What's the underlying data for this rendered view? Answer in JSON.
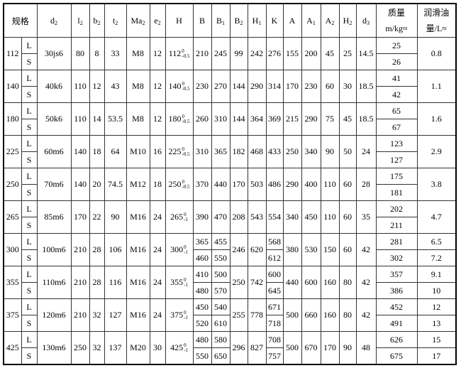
{
  "headers": [
    {
      "base": "规格"
    },
    {
      "base": "d",
      "sub": "2"
    },
    {
      "base": "l",
      "sub": "2"
    },
    {
      "base": "b",
      "sub": "2"
    },
    {
      "base": "t",
      "sub": "2"
    },
    {
      "base": "Ma",
      "sub": "2"
    },
    {
      "base": "e",
      "sub": "2"
    },
    {
      "base": "H"
    },
    {
      "base": "B"
    },
    {
      "base": "B",
      "sub": "1"
    },
    {
      "base": "B",
      "sub": "2"
    },
    {
      "base": "H",
      "sub": "1"
    },
    {
      "base": "K"
    },
    {
      "base": "A"
    },
    {
      "base": "A",
      "sub": "1"
    },
    {
      "base": "A",
      "sub": "2"
    },
    {
      "base": "H",
      "sub": "2"
    },
    {
      "base": "d",
      "sub": "3"
    },
    {
      "base": "质量 m/kg≈"
    },
    {
      "base": "润滑油量/L≈"
    }
  ],
  "variants": [
    "L",
    "S"
  ],
  "rows": [
    {
      "size": "112",
      "d2": "30js6",
      "l2": "80",
      "b2": "8",
      "t2": "33",
      "Ma2": "M8",
      "e2": "12",
      "H": {
        "base": "112",
        "upper": "0",
        "lower": "-0.5"
      },
      "B": "210",
      "B1": "245",
      "B2": "99",
      "H1": "242",
      "K": "276",
      "A": "155",
      "A1": "200",
      "A2": "45",
      "H2": "25",
      "d3": "14.5",
      "mass": [
        "25",
        "26"
      ],
      "oil": "0.8"
    },
    {
      "size": "140",
      "d2": "40k6",
      "l2": "110",
      "b2": "12",
      "t2": "43",
      "Ma2": "M8",
      "e2": "12",
      "H": {
        "base": "140",
        "upper": "0",
        "lower": "-0.5"
      },
      "B": "230",
      "B1": "270",
      "B2": "144",
      "H1": "290",
      "K": "314",
      "A": "170",
      "A1": "230",
      "A2": "60",
      "H2": "30",
      "d3": "18.5",
      "mass": [
        "41",
        "42"
      ],
      "oil": "1.1"
    },
    {
      "size": "180",
      "d2": "50k6",
      "l2": "110",
      "b2": "14",
      "t2": "53.5",
      "Ma2": "M8",
      "e2": "12",
      "H": {
        "base": "180",
        "upper": "0",
        "lower": "-0.5"
      },
      "B": "260",
      "B1": "310",
      "B2": "144",
      "H1": "364",
      "K": "369",
      "A": "215",
      "A1": "290",
      "A2": "75",
      "H2": "45",
      "d3": "18.5",
      "mass": [
        "65",
        "67"
      ],
      "oil": "1.6"
    },
    {
      "size": "225",
      "d2": "60m6",
      "l2": "140",
      "b2": "18",
      "t2": "64",
      "Ma2": "M10",
      "e2": "16",
      "H": {
        "base": "225",
        "upper": "0",
        "lower": "-0.5"
      },
      "B": "310",
      "B1": "365",
      "B2": "182",
      "H1": "468",
      "K": "433",
      "A": "250",
      "A1": "340",
      "A2": "90",
      "H2": "50",
      "d3": "24",
      "mass": [
        "123",
        "127"
      ],
      "oil": "2.9"
    },
    {
      "size": "250",
      "d2": "70m6",
      "l2": "140",
      "b2": "20",
      "t2": "74.5",
      "Ma2": "M12",
      "e2": "18",
      "H": {
        "base": "250",
        "upper": "0",
        "lower": "-0.5"
      },
      "B": "370",
      "B1": "440",
      "B2": "170",
      "H1": "503",
      "K": "486",
      "A": "290",
      "A1": "400",
      "A2": "110",
      "H2": "60",
      "d3": "28",
      "mass": [
        "175",
        "181"
      ],
      "oil": "3.8"
    },
    {
      "size": "265",
      "d2": "85m6",
      "l2": "170",
      "b2": "22",
      "t2": "90",
      "Ma2": "M16",
      "e2": "24",
      "H": {
        "base": "265",
        "upper": "0",
        "lower": "-1"
      },
      "B": "390",
      "B1": "470",
      "B2": "208",
      "H1": "543",
      "K": "554",
      "A": "340",
      "A1": "450",
      "A2": "110",
      "H2": "60",
      "d3": "35",
      "mass": [
        "202",
        "211"
      ],
      "oil": "4.7"
    },
    {
      "size": "300",
      "d2": "100m6",
      "l2": "210",
      "b2": "28",
      "t2": "106",
      "Ma2": "M16",
      "e2": "24",
      "H": {
        "base": "300",
        "upper": "0",
        "lower": "-1"
      },
      "B": [
        "365",
        "460"
      ],
      "B1": [
        "455",
        "550"
      ],
      "B2": "246",
      "H1": "620",
      "K": [
        "568",
        "612"
      ],
      "A": "380",
      "A1": "530",
      "A2": "150",
      "H2": "60",
      "d3": "42",
      "mass": [
        "281",
        "302"
      ],
      "oil": [
        "6.5",
        "7.2"
      ]
    },
    {
      "size": "355",
      "d2": "110m6",
      "l2": "210",
      "b2": "28",
      "t2": "116",
      "Ma2": "M16",
      "e2": "24",
      "H": {
        "base": "355",
        "upper": "0",
        "lower": "-1"
      },
      "B": [
        "410",
        "480"
      ],
      "B1": [
        "500",
        "570"
      ],
      "B2": "250",
      "H1": "742",
      "K": [
        "600",
        "645"
      ],
      "A": "440",
      "A1": "600",
      "A2": "160",
      "H2": "80",
      "d3": "42",
      "mass": [
        "357",
        "386"
      ],
      "oil": [
        "9.1",
        "10"
      ]
    },
    {
      "size": "375",
      "d2": "120m6",
      "l2": "210",
      "b2": "32",
      "t2": "127",
      "Ma2": "M16",
      "e2": "24",
      "H": {
        "base": "375",
        "upper": "0",
        "lower": "-1"
      },
      "B": [
        "450",
        "520"
      ],
      "B1": [
        "540",
        "610"
      ],
      "B2": "255",
      "H1": "778",
      "K": [
        "671",
        "718"
      ],
      "A": "500",
      "A1": "660",
      "A2": "160",
      "H2": "80",
      "d3": "42",
      "mass": [
        "452",
        "491"
      ],
      "oil": [
        "12",
        "13"
      ]
    },
    {
      "size": "425",
      "d2": "130m6",
      "l2": "250",
      "b2": "32",
      "t2": "137",
      "Ma2": "M20",
      "e2": "30",
      "H": {
        "base": "425",
        "upper": "0",
        "lower": "-1"
      },
      "B": [
        "480",
        "550"
      ],
      "B1": [
        "580",
        "650"
      ],
      "B2": "296",
      "H1": "827",
      "K": [
        "708",
        "757"
      ],
      "A": "500",
      "A1": "670",
      "A2": "170",
      "H2": "90",
      "d3": "48",
      "mass": [
        "626",
        "675"
      ],
      "oil": [
        "15",
        "17"
      ]
    }
  ]
}
